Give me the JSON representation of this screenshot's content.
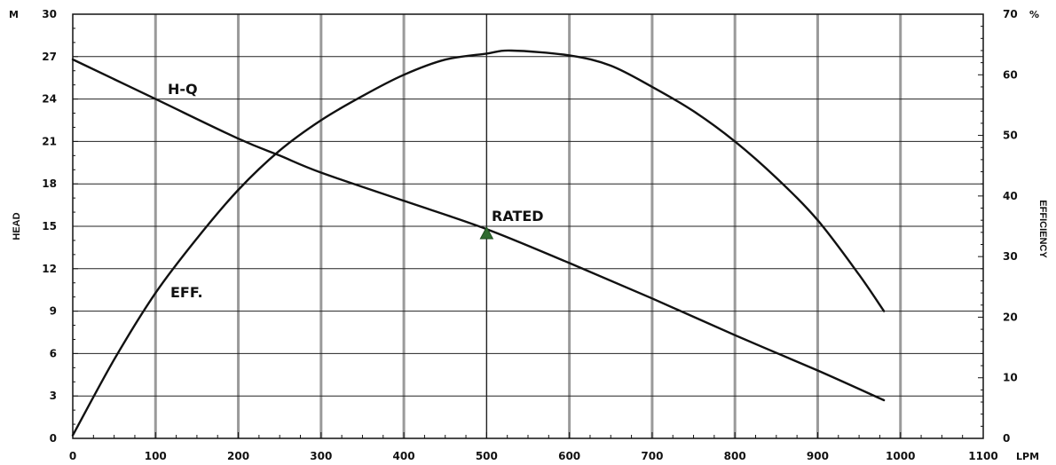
{
  "chart_data": {
    "type": "line",
    "x_axis": {
      "unit": "LPM",
      "range": [
        0,
        1100
      ],
      "ticks": [
        "0",
        "100",
        "200",
        "300",
        "400",
        "500",
        "600",
        "700",
        "800",
        "900",
        "1000",
        "1100"
      ]
    },
    "y_left_axis": {
      "unit": "M",
      "title": "HEAD",
      "range": [
        0,
        30
      ],
      "ticks": [
        "0",
        "3",
        "6",
        "9",
        "12",
        "15",
        "18",
        "21",
        "24",
        "27",
        "30"
      ]
    },
    "y_right_axis": {
      "unit": "%",
      "title": "EFFICIENCY",
      "range": [
        0,
        70
      ],
      "ticks": [
        "0",
        "10",
        "20",
        "30",
        "40",
        "50",
        "60",
        "70"
      ]
    },
    "series": [
      {
        "name": "H-Q",
        "axis": "left",
        "x": [
          0,
          100,
          200,
          250,
          300,
          400,
          500,
          600,
          700,
          800,
          900,
          980
        ],
        "values": [
          26.8,
          24.0,
          21.2,
          20.0,
          18.8,
          16.8,
          14.8,
          12.4,
          9.9,
          7.3,
          4.8,
          2.7
        ]
      },
      {
        "name": "EFF.",
        "axis": "right",
        "x": [
          0,
          50,
          100,
          150,
          200,
          250,
          300,
          350,
          400,
          450,
          500,
          530,
          600,
          650,
          700,
          750,
          800,
          850,
          900,
          950,
          980
        ],
        "values": [
          0.5,
          13,
          24,
          33,
          41,
          47.5,
          52.5,
          56.5,
          60,
          62.5,
          63.5,
          64,
          63.2,
          61.5,
          58,
          54,
          49,
          43,
          36,
          27,
          21
        ]
      }
    ],
    "rated_point": {
      "label": "RATED",
      "x": 500,
      "y": 14.5
    },
    "grid": true,
    "colors": {
      "line": "#111111",
      "grid_major": "#222222",
      "grid_minor": "#9a9a9a",
      "marker": "#2f6b2f"
    }
  }
}
